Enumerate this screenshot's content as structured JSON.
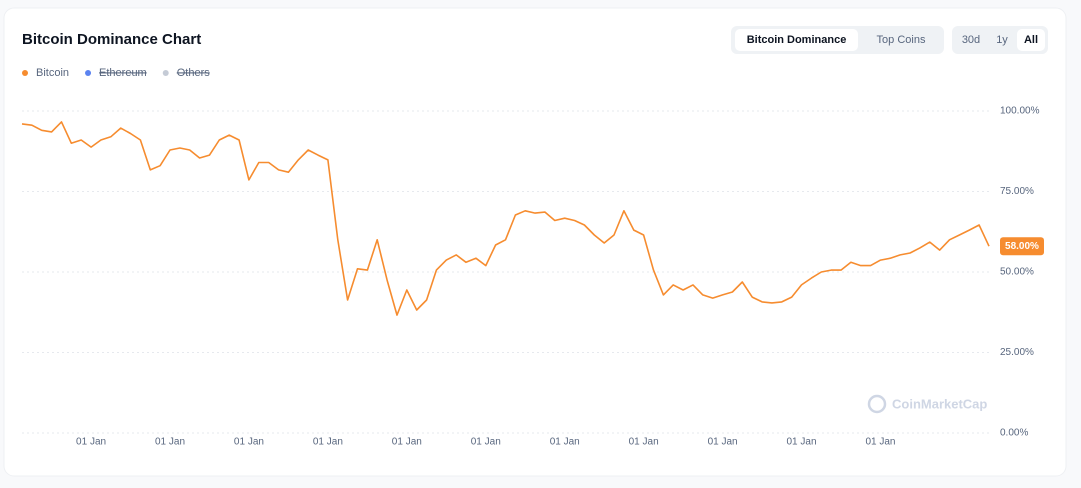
{
  "chart_data": {
    "type": "line",
    "title": "Bitcoin Dominance Chart",
    "categories": [
      null,
      null,
      null,
      null,
      null,
      null,
      null,
      "01 Jan",
      null,
      null,
      null,
      null,
      null,
      null,
      null,
      "01 Jan",
      null,
      null,
      null,
      null,
      null,
      null,
      null,
      "01 Jan",
      null,
      null,
      null,
      null,
      null,
      null,
      null,
      "01 Jan",
      null,
      null,
      null,
      null,
      null,
      null,
      null,
      "01 Jan",
      null,
      null,
      null,
      null,
      null,
      null,
      null,
      "01 Jan",
      null,
      null,
      null,
      null,
      null,
      null,
      null,
      "01 Jan",
      null,
      null,
      null,
      null,
      null,
      null,
      null,
      "01 Jan",
      null,
      null,
      null,
      null,
      null,
      null,
      null,
      "01 Jan",
      null,
      null,
      null,
      null,
      null,
      null,
      null,
      "01 Jan",
      null,
      null,
      null,
      null,
      null,
      null,
      null,
      "01 Jan",
      null,
      null,
      null,
      null,
      null,
      null,
      null,
      null,
      null,
      null,
      null
    ],
    "series": [
      {
        "name": "Bitcoin",
        "color": "#f68c2f",
        "values": [
          96,
          95.6,
          94,
          93.5,
          96.6,
          90,
          91,
          88.8,
          91,
          92,
          94.7,
          93,
          91,
          81.7,
          83,
          87.9,
          88.5,
          87.9,
          85.4,
          86.3,
          91,
          92.5,
          91,
          78.6,
          84,
          84,
          81.7,
          81,
          84.8,
          87.9,
          86.3,
          84.8,
          60,
          41.3,
          51,
          50.6,
          60,
          47.5,
          36.6,
          44.4,
          38.2,
          41.3,
          50.6,
          53.7,
          55.3,
          53,
          54.3,
          52,
          58.4,
          60,
          67.7,
          69,
          68.3,
          68.6,
          66,
          66.7,
          66,
          64.6,
          61.5,
          59,
          61.5,
          69,
          63,
          61.5,
          50.6,
          42.9,
          46,
          44.4,
          46,
          42.9,
          41.9,
          42.9,
          43.8,
          46.9,
          42.2,
          40.7,
          40.4,
          40.7,
          42.2,
          46,
          48.1,
          50,
          50.6,
          50.6,
          53,
          52,
          52,
          53.7,
          54.3,
          55.3,
          55.9,
          57.5,
          59.3,
          56.8,
          60,
          61.5,
          63,
          64.6,
          58
        ],
        "value_labels": [
          null,
          null,
          null,
          null,
          null,
          null,
          null,
          null,
          null,
          null,
          null,
          null,
          null,
          null,
          null,
          null,
          null,
          null,
          null,
          null,
          null,
          null,
          null,
          null,
          null,
          null,
          null,
          null,
          null,
          null,
          null,
          null,
          null,
          null,
          null,
          null,
          null,
          null,
          null,
          null,
          null,
          null,
          null,
          null,
          null,
          null,
          null,
          null,
          null,
          null,
          null,
          null,
          null,
          null,
          null,
          null,
          null,
          null,
          null,
          null,
          null,
          null,
          null,
          null,
          null,
          null,
          null,
          null,
          null,
          null,
          null,
          null,
          null,
          null,
          null,
          null,
          null,
          null,
          null,
          null,
          null,
          null,
          null,
          null,
          null,
          null,
          null,
          null,
          null,
          null,
          null,
          null,
          null,
          null,
          null,
          null,
          null,
          null,
          "58.00%"
        ]
      },
      {
        "name": "Ethereum",
        "color": "#5b83f0",
        "hidden": true
      },
      {
        "name": "Others",
        "color": "#c5cbd6",
        "hidden": true
      }
    ],
    "ylim": [
      0,
      100
    ],
    "yticks": [
      {
        "value": 0,
        "label": "0.00%"
      },
      {
        "value": 25,
        "label": "25.00%"
      },
      {
        "value": 50,
        "label": "50.00%"
      },
      {
        "value": 75,
        "label": "75.00%"
      },
      {
        "value": 100,
        "label": "100.00%"
      }
    ],
    "grid": true,
    "legend": "top-left"
  },
  "ui": {
    "tabs": [
      "Bitcoin Dominance",
      "Top Coins"
    ],
    "active_tab": 0,
    "ranges": [
      "30d",
      "1y",
      "All"
    ],
    "active_range": 2,
    "watermark": "CoinMarketCap"
  }
}
